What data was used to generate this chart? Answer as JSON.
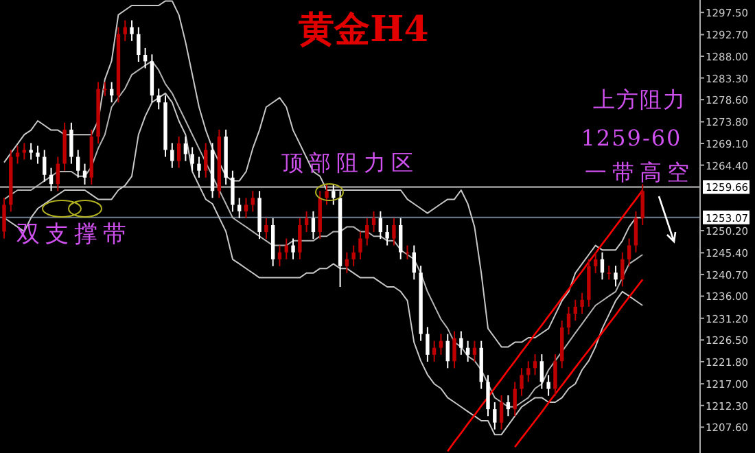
{
  "chart_data": {
    "type": "candlestick",
    "title": "黄金H4",
    "categories": [
      null,
      null,
      null,
      null,
      null,
      null,
      null,
      null,
      null,
      null,
      null,
      null,
      null,
      null,
      null,
      null,
      null,
      null,
      null,
      null,
      null,
      null,
      null,
      null,
      null,
      null,
      null,
      null,
      null,
      null,
      null,
      null,
      null,
      null,
      null,
      null,
      null,
      null,
      null,
      null,
      null,
      null,
      null,
      null,
      null,
      null,
      null,
      null,
      null,
      null,
      null,
      null,
      null,
      null,
      null,
      null,
      null,
      null,
      null,
      null,
      null,
      null,
      null,
      null,
      null,
      null,
      null,
      null,
      null,
      null,
      null,
      null,
      null,
      null,
      null,
      null,
      null,
      null,
      null,
      null,
      null,
      null,
      null,
      null,
      null,
      null,
      null,
      null,
      null,
      null,
      null,
      null,
      null,
      null,
      null,
      null
    ],
    "colors": [
      "#c00000",
      "#c00000",
      "#c00000",
      "#c00000",
      "#ffffff",
      "#ffffff",
      "#ffffff",
      "#ffffff",
      "#c00000",
      "#c00000",
      "#ffffff",
      "#ffffff",
      "#ffffff",
      "#c00000",
      "#c00000",
      "#c00000",
      "#ffffff",
      "#c00000",
      "#c00000",
      "#ffffff",
      "#ffffff",
      "#ffffff",
      "#ffffff",
      "#ffffff",
      "#ffffff",
      "#ffffff",
      "#c00000",
      "#ffffff",
      "#ffffff",
      "#ffffff",
      "#c00000",
      "#ffffff",
      "#c00000",
      "#ffffff",
      "#ffffff",
      "#ffffff",
      "#c00000",
      "#c00000",
      "#ffffff",
      "#c00000",
      "#ffffff",
      "#c00000",
      "#c00000",
      "#ffffff",
      "#c00000",
      "#c00000",
      "#ffffff",
      "#c00000",
      "#c00000",
      "#ffffff",
      "#ffffff",
      "#c00000",
      "#c00000",
      "#c00000",
      "#c00000",
      "#c00000",
      "#ffffff",
      "#ffffff",
      "#c00000",
      "#ffffff",
      "#c00000",
      "#ffffff",
      "#ffffff",
      "#ffffff",
      "#c00000",
      "#c00000",
      "#ffffff",
      "#c00000",
      "#ffffff",
      "#ffffff",
      "#c00000",
      "#ffffff",
      "#ffffff",
      "#ffffff",
      "#c00000",
      "#ffffff",
      "#c00000",
      "#c00000",
      "#c00000",
      "#c00000",
      "#ffffff",
      "#ffffff",
      "#c00000",
      "#c00000",
      "#c00000",
      "#c00000",
      "#c00000",
      "#c00000",
      "#c00000",
      "#ffffff",
      "#c00000",
      "#ffffff",
      "#c00000",
      "#c00000",
      "#c00000",
      "#c00000"
    ],
    "ohlc": [
      [
        1250.0,
        1257.3,
        1248.5,
        1255.8
      ],
      [
        1255.8,
        1267.7,
        1254.3,
        1266.2
      ],
      [
        1266.2,
        1268.6,
        1264.7,
        1267.1
      ],
      [
        1267.1,
        1269.2,
        1265.6,
        1267.7
      ],
      [
        1267.7,
        1269.2,
        1265.6,
        1267.1
      ],
      [
        1267.1,
        1268.6,
        1264.7,
        1266.2
      ],
      [
        1266.2,
        1267.7,
        1260.8,
        1262.3
      ],
      [
        1262.3,
        1263.8,
        1258.8,
        1260.3
      ],
      [
        1260.3,
        1266.2,
        1258.8,
        1264.7
      ],
      [
        1264.7,
        1273.6,
        1263.2,
        1272.1
      ],
      [
        1272.1,
        1273.6,
        1264.7,
        1266.2
      ],
      [
        1266.2,
        1267.7,
        1261.7,
        1263.2
      ],
      [
        1263.2,
        1264.7,
        1260.2,
        1261.7
      ],
      [
        1261.7,
        1272.1,
        1260.2,
        1270.6
      ],
      [
        1270.6,
        1282.4,
        1269.1,
        1280.9
      ],
      [
        1280.9,
        1282.4,
        1279.4,
        1280.9
      ],
      [
        1280.9,
        1282.4,
        1278.0,
        1279.5
      ],
      [
        1279.5,
        1294.3,
        1278.0,
        1292.8
      ],
      [
        1292.8,
        1295.8,
        1291.3,
        1294.3
      ],
      [
        1294.3,
        1295.8,
        1291.3,
        1292.8
      ],
      [
        1292.8,
        1294.3,
        1286.8,
        1288.3
      ],
      [
        1288.3,
        1289.8,
        1285.4,
        1286.9
      ],
      [
        1286.9,
        1288.4,
        1278.0,
        1279.5
      ],
      [
        1279.5,
        1281.0,
        1276.5,
        1278.0
      ],
      [
        1278.0,
        1279.5,
        1266.2,
        1267.7
      ],
      [
        1267.7,
        1269.2,
        1263.8,
        1265.3
      ],
      [
        1265.3,
        1270.6,
        1263.8,
        1269.1
      ],
      [
        1269.1,
        1270.6,
        1265.3,
        1266.8
      ],
      [
        1266.8,
        1268.3,
        1263.2,
        1264.7
      ],
      [
        1264.7,
        1266.2,
        1261.7,
        1263.2
      ],
      [
        1263.2,
        1269.2,
        1261.7,
        1267.7
      ],
      [
        1267.7,
        1269.2,
        1257.3,
        1258.8
      ],
      [
        1258.8,
        1272.1,
        1257.3,
        1270.6
      ],
      [
        1270.6,
        1272.1,
        1260.2,
        1261.7
      ],
      [
        1261.7,
        1263.2,
        1254.3,
        1255.8
      ],
      [
        1255.8,
        1257.3,
        1252.9,
        1254.4
      ],
      [
        1254.4,
        1257.3,
        1252.9,
        1255.8
      ],
      [
        1255.8,
        1258.8,
        1254.3,
        1257.3
      ],
      [
        1257.3,
        1258.8,
        1248.4,
        1249.9
      ],
      [
        1249.9,
        1252.9,
        1248.4,
        1251.4
      ],
      [
        1251.4,
        1252.9,
        1242.5,
        1244.0
      ],
      [
        1244.0,
        1247.0,
        1242.5,
        1245.5
      ],
      [
        1245.5,
        1248.5,
        1244.0,
        1247.0
      ],
      [
        1247.0,
        1248.5,
        1244.0,
        1245.5
      ],
      [
        1245.5,
        1252.9,
        1244.0,
        1251.4
      ],
      [
        1251.4,
        1254.4,
        1249.9,
        1252.9
      ],
      [
        1252.9,
        1254.4,
        1248.4,
        1249.9
      ],
      [
        1249.9,
        1258.8,
        1248.4,
        1257.3
      ],
      [
        1257.3,
        1260.3,
        1255.8,
        1258.8
      ],
      [
        1258.8,
        1260.3,
        1255.8,
        1257.3
      ],
      [
        1257.3,
        1258.8,
        1238.0,
        1242.5
      ],
      [
        1242.5,
        1245.5,
        1241.0,
        1244.0
      ],
      [
        1244.0,
        1247.0,
        1242.5,
        1245.5
      ],
      [
        1245.5,
        1250.0,
        1244.0,
        1248.5
      ],
      [
        1248.5,
        1252.9,
        1247.0,
        1251.4
      ],
      [
        1251.4,
        1254.4,
        1249.9,
        1252.9
      ],
      [
        1252.9,
        1254.4,
        1248.4,
        1249.9
      ],
      [
        1249.9,
        1251.4,
        1247.0,
        1248.5
      ],
      [
        1248.5,
        1252.9,
        1247.0,
        1251.4
      ],
      [
        1251.4,
        1252.9,
        1244.0,
        1245.5
      ],
      [
        1245.5,
        1247.0,
        1244.0,
        1245.5
      ],
      [
        1245.5,
        1247.0,
        1239.6,
        1241.1
      ],
      [
        1241.1,
        1242.6,
        1226.3,
        1227.8
      ],
      [
        1227.8,
        1229.3,
        1221.8,
        1223.3
      ],
      [
        1223.3,
        1226.3,
        1221.8,
        1224.8
      ],
      [
        1224.8,
        1227.8,
        1223.3,
        1226.3
      ],
      [
        1226.3,
        1227.8,
        1220.4,
        1221.9
      ],
      [
        1221.9,
        1228.4,
        1220.4,
        1226.9
      ],
      [
        1226.9,
        1228.4,
        1223.3,
        1224.8
      ],
      [
        1224.8,
        1226.3,
        1221.8,
        1223.3
      ],
      [
        1223.3,
        1226.3,
        1221.8,
        1224.8
      ],
      [
        1224.8,
        1226.3,
        1215.9,
        1217.4
      ],
      [
        1217.4,
        1218.9,
        1210.0,
        1211.5
      ],
      [
        1211.5,
        1213.0,
        1207.1,
        1208.6
      ],
      [
        1208.6,
        1214.5,
        1207.1,
        1213.0
      ],
      [
        1213.0,
        1214.5,
        1210.0,
        1211.5
      ],
      [
        1211.5,
        1217.4,
        1210.0,
        1215.9
      ],
      [
        1215.9,
        1220.4,
        1214.4,
        1218.9
      ],
      [
        1218.9,
        1221.9,
        1217.4,
        1220.4
      ],
      [
        1220.4,
        1223.4,
        1218.9,
        1221.9
      ],
      [
        1221.9,
        1223.4,
        1215.9,
        1217.4
      ],
      [
        1217.4,
        1218.9,
        1214.4,
        1215.9
      ],
      [
        1215.9,
        1223.4,
        1214.4,
        1221.9
      ],
      [
        1221.9,
        1230.7,
        1220.4,
        1229.2
      ],
      [
        1229.2,
        1233.7,
        1227.7,
        1232.2
      ],
      [
        1232.2,
        1235.2,
        1230.7,
        1233.7
      ],
      [
        1233.7,
        1236.7,
        1232.2,
        1235.2
      ],
      [
        1235.2,
        1244.0,
        1233.7,
        1242.5
      ],
      [
        1242.5,
        1245.5,
        1241.0,
        1244.0
      ],
      [
        1244.0,
        1245.5,
        1239.6,
        1241.1
      ],
      [
        1241.1,
        1242.6,
        1239.6,
        1241.1
      ],
      [
        1241.1,
        1242.6,
        1238.1,
        1239.6
      ],
      [
        1239.6,
        1245.5,
        1238.1,
        1244.0
      ],
      [
        1244.0,
        1248.5,
        1242.5,
        1247.0
      ],
      [
        1247.0,
        1254.4,
        1245.5,
        1252.9
      ],
      [
        1252.9,
        1260.3,
        1251.4,
        1258.8
      ]
    ],
    "series": [
      {
        "type": "line",
        "color": "#c8c8c8",
        "values": [
          1265,
          1267,
          1269,
          1271,
          1272,
          1274,
          1273,
          1272,
          1272,
          1271,
          1271,
          1271,
          1271,
          1271,
          1274,
          1283,
          1287,
          1297,
          1298,
          1299,
          1299,
          1299,
          1299,
          1299,
          1300,
          1300,
          1297,
          1291,
          1284,
          1277,
          1272,
          1268,
          1265,
          1262,
          1261,
          1261,
          1263,
          1268,
          1272,
          1277,
          1278,
          1279,
          1277,
          1272,
          1269,
          1266,
          1263,
          1262,
          1259,
          1259,
          1259,
          1259,
          1259,
          1259,
          1259,
          1259,
          1259,
          1259,
          1259,
          1259,
          1257,
          1256,
          1255,
          1254,
          1255,
          1256,
          1257,
          1257,
          1259,
          1256,
          1251,
          1241,
          1229,
          1227,
          1225,
          1225,
          1226,
          1226,
          1227,
          1227,
          1228,
          1229,
          1232,
          1235,
          1237,
          1241,
          1243,
          1245,
          1247,
          1246,
          1246,
          1246,
          1248,
          1251,
          1253,
          1253
        ]
      },
      {
        "type": "line",
        "color": "#b4b4b4",
        "values": [
          1257,
          1258,
          1259,
          1259,
          1259,
          1260,
          1261,
          1262,
          1263,
          1263,
          1263,
          1262,
          1262,
          1264,
          1268,
          1271,
          1277,
          1279,
          1281,
          1284,
          1285,
          1286,
          1287,
          1285,
          1282,
          1280,
          1277,
          1274,
          1271,
          1268,
          1265,
          1262,
          1259,
          1256,
          1253,
          1252,
          1251,
          1250,
          1249,
          1248,
          1247,
          1247,
          1247,
          1248,
          1248,
          1248,
          1248,
          1249,
          1249,
          1250,
          1250,
          1251,
          1251,
          1250,
          1250,
          1249,
          1249,
          1248,
          1248,
          1246,
          1245,
          1244,
          1241,
          1237,
          1234,
          1231,
          1229,
          1226,
          1225,
          1223,
          1222,
          1220,
          1217,
          1214,
          1213,
          1212,
          1212,
          1213,
          1214,
          1216,
          1217,
          1220,
          1222,
          1224,
          1226,
          1228,
          1230,
          1232,
          1234,
          1235,
          1236,
          1237,
          1240,
          1243,
          1244,
          1245
        ]
      },
      {
        "type": "line",
        "color": "#c8c8c8",
        "values": [
          1253,
          1252,
          1251,
          1250,
          1253,
          1255,
          1256,
          1257,
          1258,
          1259,
          1259,
          1259,
          1259,
          1258,
          1257,
          1257,
          1257,
          1259,
          1260,
          1262,
          1271,
          1275,
          1278,
          1279,
          1280,
          1278,
          1274,
          1271,
          1263,
          1260,
          1257,
          1256,
          1253,
          1250,
          1244,
          1243,
          1242,
          1241,
          1240,
          1240,
          1240,
          1240,
          1240,
          1240,
          1240,
          1241,
          1241,
          1242,
          1242,
          1243,
          1242,
          1242,
          1241,
          1240,
          1240,
          1240,
          1239,
          1238,
          1238,
          1237,
          1235,
          1226,
          1222,
          1219,
          1217,
          1216,
          1214,
          1213,
          1212,
          1211,
          1210,
          1209,
          1209,
          1206,
          1206,
          1208,
          1210,
          1212,
          1213,
          1214,
          1214,
          1213,
          1213,
          1214,
          1216,
          1217,
          1220,
          1222,
          1225,
          1229,
          1232,
          1235,
          1237,
          1236,
          1235,
          1234
        ]
      },
      {
        "type": "line",
        "color": "#ff0000",
        "values": [
          null,
          null,
          null,
          null,
          null,
          null,
          null,
          null,
          null,
          null,
          null,
          null,
          null,
          null,
          null,
          null,
          null,
          null,
          null,
          null,
          null,
          null,
          null,
          null,
          null,
          null,
          null,
          null,
          null,
          null,
          null,
          null,
          null,
          null,
          null,
          null,
          null,
          null,
          null,
          null,
          null,
          null,
          null,
          null,
          null,
          null,
          null,
          null,
          null,
          null,
          null,
          null,
          null,
          null,
          null,
          null,
          null,
          null,
          null,
          null,
          null,
          null,
          null,
          null,
          null,
          null,
          1202.4,
          1204.4,
          1206.3,
          1208.3,
          1210.2,
          1212.2,
          1214.1,
          1216.1,
          1218.0,
          1220.0,
          1221.9,
          1223.9,
          1225.8,
          1227.8,
          1229.7,
          1231.7,
          1233.6,
          1235.6,
          1237.5,
          1239.5,
          1241.4,
          1243.4,
          1245.3,
          1247.3,
          1249.2,
          1251.2,
          1253.1,
          1255.1,
          1257.0,
          1259.0
        ]
      },
      {
        "type": "line",
        "color": "#ff0000",
        "values": [
          null,
          null,
          null,
          null,
          null,
          null,
          null,
          null,
          null,
          null,
          null,
          null,
          null,
          null,
          null,
          null,
          null,
          null,
          null,
          null,
          null,
          null,
          null,
          null,
          null,
          null,
          null,
          null,
          null,
          null,
          null,
          null,
          null,
          null,
          null,
          null,
          null,
          null,
          null,
          null,
          null,
          null,
          null,
          null,
          null,
          null,
          null,
          null,
          null,
          null,
          null,
          null,
          null,
          null,
          null,
          null,
          null,
          null,
          null,
          null,
          null,
          null,
          null,
          null,
          null,
          null,
          null,
          null,
          null,
          null,
          null,
          null,
          null,
          null,
          null,
          null,
          1203.3,
          1205.2,
          1207.1,
          1209.0,
          1210.9,
          1212.9,
          1214.8,
          1216.7,
          1218.6,
          1220.5,
          1222.4,
          1224.3,
          1226.2,
          1228.1,
          1230.0,
          1231.9,
          1233.9,
          1235.8,
          1237.7,
          1239.6
        ]
      }
    ],
    "ylim": [
      1202.0,
      1300.2
    ],
    "yticks": [
      {
        "value": 1297.5,
        "label": "1297.50"
      },
      {
        "value": 1292.7,
        "label": "1292.70"
      },
      {
        "value": 1288.0,
        "label": "1288.00"
      },
      {
        "value": 1283.3,
        "label": "1283.30"
      },
      {
        "value": 1278.6,
        "label": "1278.60"
      },
      {
        "value": 1273.8,
        "label": "1273.80"
      },
      {
        "value": 1269.1,
        "label": "1269.10"
      },
      {
        "value": 1264.4,
        "label": "1264.40"
      },
      {
        "value": 1250.2,
        "label": "1250.20"
      },
      {
        "value": 1245.4,
        "label": "1245.40"
      },
      {
        "value": 1240.7,
        "label": "1240.70"
      },
      {
        "value": 1236.0,
        "label": "1236.00"
      },
      {
        "value": 1231.2,
        "label": "1231.20"
      },
      {
        "value": 1226.5,
        "label": "1226.50"
      },
      {
        "value": 1221.8,
        "label": "1221.80"
      },
      {
        "value": 1217.0,
        "label": "1217.00"
      },
      {
        "value": 1212.3,
        "label": "1212.30"
      },
      {
        "value": 1207.6,
        "label": "1207.60"
      }
    ],
    "ref_lines": [
      {
        "axis": "y",
        "value": 1259.66,
        "label": "1259.66",
        "color": "#c8c8c8"
      },
      {
        "axis": "y",
        "value": 1253.07,
        "label": "1253.07",
        "color": "#708090"
      }
    ],
    "annotations": [
      "双支撑带",
      "顶部阻力区",
      "上方阻力",
      "1259-60",
      "一带高空"
    ],
    "tick_labels": "y"
  }
}
